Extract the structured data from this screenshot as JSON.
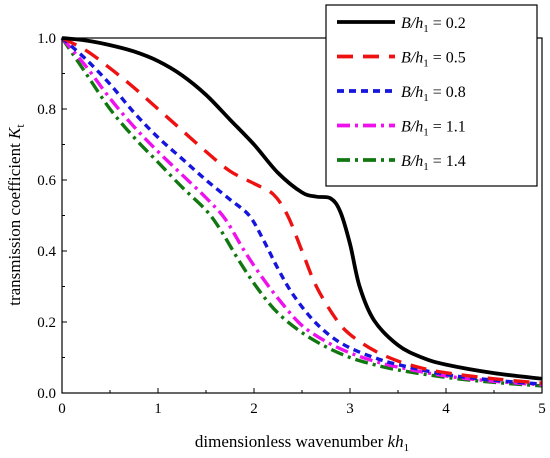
{
  "chart_data": {
    "type": "line",
    "xlabel": {
      "prefix": "dimensionless wavenumber ",
      "var": "kh",
      "sub": "1"
    },
    "ylabel": {
      "prefix": "transmission coefficient ",
      "var": "K",
      "sub": "t"
    },
    "xlim": [
      0,
      5
    ],
    "ylim": [
      0,
      1.0
    ],
    "xticks": [
      "0",
      "1",
      "2",
      "3",
      "4",
      "5"
    ],
    "yticks": [
      "0.0",
      "0.2",
      "0.4",
      "0.6",
      "0.8",
      "1.0"
    ],
    "grid": false,
    "legend_position": "top-right",
    "series": [
      {
        "name": "B/h1 = 0.2",
        "legend": {
          "var": "B/h",
          "sub": "1",
          "rest": " = 0.2"
        },
        "color": "#000000",
        "dash": "solid",
        "points": [
          [
            0,
            1.0
          ],
          [
            0.25,
            0.993
          ],
          [
            0.5,
            0.98
          ],
          [
            0.75,
            0.962
          ],
          [
            1.0,
            0.935
          ],
          [
            1.25,
            0.895
          ],
          [
            1.5,
            0.84
          ],
          [
            1.75,
            0.77
          ],
          [
            2.0,
            0.7
          ],
          [
            2.25,
            0.62
          ],
          [
            2.5,
            0.565
          ],
          [
            2.65,
            0.553
          ],
          [
            2.8,
            0.548
          ],
          [
            2.9,
            0.51
          ],
          [
            3.0,
            0.42
          ],
          [
            3.1,
            0.3
          ],
          [
            3.25,
            0.205
          ],
          [
            3.5,
            0.135
          ],
          [
            3.75,
            0.1
          ],
          [
            4.0,
            0.08
          ],
          [
            4.5,
            0.056
          ],
          [
            5.0,
            0.04
          ]
        ]
      },
      {
        "name": "B/h1 = 0.5",
        "legend": {
          "var": "B/h",
          "sub": "1",
          "rest": " = 0.5"
        },
        "color": "#ee1111",
        "dash": "longdash",
        "points": [
          [
            0,
            1.0
          ],
          [
            0.25,
            0.965
          ],
          [
            0.5,
            0.915
          ],
          [
            0.75,
            0.86
          ],
          [
            1.0,
            0.8
          ],
          [
            1.25,
            0.74
          ],
          [
            1.5,
            0.68
          ],
          [
            1.75,
            0.625
          ],
          [
            2.0,
            0.59
          ],
          [
            2.2,
            0.56
          ],
          [
            2.35,
            0.5
          ],
          [
            2.5,
            0.4
          ],
          [
            2.65,
            0.3
          ],
          [
            2.85,
            0.21
          ],
          [
            3.0,
            0.165
          ],
          [
            3.25,
            0.12
          ],
          [
            3.5,
            0.09
          ],
          [
            3.75,
            0.07
          ],
          [
            4.0,
            0.057
          ],
          [
            4.5,
            0.04
          ],
          [
            5.0,
            0.028
          ]
        ]
      },
      {
        "name": "B/h1 = 0.8",
        "legend": {
          "var": "B/h",
          "sub": "1",
          "rest": " = 0.8"
        },
        "color": "#1515dd",
        "dash": "shortdash",
        "points": [
          [
            0,
            1.0
          ],
          [
            0.25,
            0.94
          ],
          [
            0.5,
            0.87
          ],
          [
            0.75,
            0.79
          ],
          [
            1.0,
            0.72
          ],
          [
            1.25,
            0.66
          ],
          [
            1.5,
            0.6
          ],
          [
            1.75,
            0.545
          ],
          [
            1.95,
            0.5
          ],
          [
            2.1,
            0.43
          ],
          [
            2.25,
            0.35
          ],
          [
            2.4,
            0.28
          ],
          [
            2.6,
            0.21
          ],
          [
            2.8,
            0.16
          ],
          [
            3.0,
            0.127
          ],
          [
            3.25,
            0.1
          ],
          [
            3.5,
            0.08
          ],
          [
            4.0,
            0.052
          ],
          [
            4.5,
            0.036
          ],
          [
            5.0,
            0.025
          ]
        ]
      },
      {
        "name": "B/h1 = 1.1",
        "legend": {
          "var": "B/h",
          "sub": "1",
          "rest": " = 1.1"
        },
        "color": "#ee11ee",
        "dash": "dashdot",
        "points": [
          [
            0,
            1.0
          ],
          [
            0.25,
            0.92
          ],
          [
            0.5,
            0.83
          ],
          [
            0.75,
            0.75
          ],
          [
            1.0,
            0.68
          ],
          [
            1.25,
            0.615
          ],
          [
            1.5,
            0.55
          ],
          [
            1.7,
            0.49
          ],
          [
            1.9,
            0.4
          ],
          [
            2.1,
            0.32
          ],
          [
            2.3,
            0.25
          ],
          [
            2.5,
            0.19
          ],
          [
            2.75,
            0.145
          ],
          [
            3.0,
            0.113
          ],
          [
            3.25,
            0.09
          ],
          [
            3.5,
            0.073
          ],
          [
            4.0,
            0.048
          ],
          [
            4.5,
            0.033
          ],
          [
            5.0,
            0.023
          ]
        ]
      },
      {
        "name": "B/h1 = 1.4",
        "legend": {
          "var": "B/h",
          "sub": "1",
          "rest": " = 1.4"
        },
        "color": "#117711",
        "dash": "dashdot",
        "points": [
          [
            0,
            1.0
          ],
          [
            0.25,
            0.9
          ],
          [
            0.5,
            0.8
          ],
          [
            0.75,
            0.72
          ],
          [
            1.0,
            0.65
          ],
          [
            1.25,
            0.58
          ],
          [
            1.5,
            0.515
          ],
          [
            1.65,
            0.46
          ],
          [
            1.85,
            0.37
          ],
          [
            2.05,
            0.29
          ],
          [
            2.25,
            0.225
          ],
          [
            2.5,
            0.17
          ],
          [
            2.75,
            0.13
          ],
          [
            3.0,
            0.1
          ],
          [
            3.25,
            0.08
          ],
          [
            3.5,
            0.065
          ],
          [
            4.0,
            0.044
          ],
          [
            4.5,
            0.03
          ],
          [
            5.0,
            0.02
          ]
        ]
      }
    ]
  }
}
